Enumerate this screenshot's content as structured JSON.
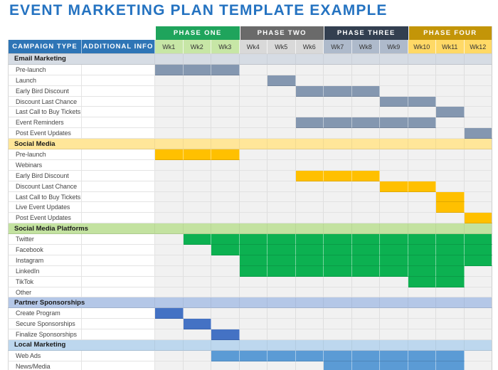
{
  "title": "EVENT MARKETING PLAN TEMPLATE EXAMPLE",
  "colors": {
    "title": "#2573C1",
    "column_header_bg": "#2E75B6",
    "empty_cell_bg": "#F1F1F1"
  },
  "columns": {
    "campaign": "CAMPAIGN TYPE",
    "info": "ADDITIONAL INFO",
    "weeks": [
      "Wk1",
      "Wk2",
      "Wk3",
      "Wk4",
      "Wk5",
      "Wk6",
      "Wk7",
      "Wk8",
      "Wk9",
      "Wk10",
      "Wk11",
      "Wk12"
    ]
  },
  "week_groups": [
    "#C7E6A6",
    "#D9D9D9",
    "#AEBACB",
    "#FFD966"
  ],
  "phases": [
    {
      "label": "PHASE ONE",
      "color": "#1FA45C"
    },
    {
      "label": "PHASE TWO",
      "color": "#6A6A6A"
    },
    {
      "label": "PHASE THREE",
      "color": "#333F50"
    },
    {
      "label": "PHASE FOUR",
      "color": "#C39508"
    }
  ],
  "rows": [
    {
      "kind": "section",
      "label": "Email Marketing",
      "bg": "#D6DCE4"
    },
    {
      "kind": "task",
      "label": "Pre-launch",
      "start": 1,
      "end": 3,
      "color": "#8497B0"
    },
    {
      "kind": "task",
      "label": "Launch",
      "start": 5,
      "end": 5,
      "color": "#8497B0"
    },
    {
      "kind": "task",
      "label": "Early Bird Discount",
      "start": 6,
      "end": 8,
      "color": "#8497B0"
    },
    {
      "kind": "task",
      "label": "Discount Last Chance",
      "start": 9,
      "end": 10,
      "color": "#8497B0"
    },
    {
      "kind": "task",
      "label": "Last Call to Buy Tickets",
      "start": 11,
      "end": 11,
      "color": "#8497B0"
    },
    {
      "kind": "task",
      "label": "Event Reminders",
      "start": 6,
      "end": 10,
      "color": "#8497B0"
    },
    {
      "kind": "task",
      "label": "Post Event Updates",
      "start": 12,
      "end": 12,
      "color": "#8497B0"
    },
    {
      "kind": "section",
      "label": "Social Media",
      "bg": "#FFE699"
    },
    {
      "kind": "task",
      "label": "Pre-launch",
      "start": 1,
      "end": 3,
      "color": "#FFC000"
    },
    {
      "kind": "task",
      "label": "Webinars",
      "start": null,
      "end": null,
      "color": null
    },
    {
      "kind": "task",
      "label": "Early Bird Discount",
      "start": 6,
      "end": 8,
      "color": "#FFC000"
    },
    {
      "kind": "task",
      "label": "Discount Last Chance",
      "start": 9,
      "end": 10,
      "color": "#FFC000"
    },
    {
      "kind": "task",
      "label": "Last Call to Buy Tickets",
      "start": 11,
      "end": 11,
      "color": "#FFC000"
    },
    {
      "kind": "task",
      "label": "Live Event Updates",
      "start": 11,
      "end": 11,
      "color": "#FFC000"
    },
    {
      "kind": "task",
      "label": "Post Event Updates",
      "start": 12,
      "end": 12,
      "color": "#FFC000"
    },
    {
      "kind": "section",
      "label": "Social Media Platforms",
      "bg": "#C3E2A0"
    },
    {
      "kind": "task",
      "label": "Twitter",
      "start": 2,
      "end": 12,
      "color": "#0CB151"
    },
    {
      "kind": "task",
      "label": "Facebook",
      "start": 3,
      "end": 12,
      "color": "#0CB151"
    },
    {
      "kind": "task",
      "label": "Instagram",
      "start": 4,
      "end": 12,
      "color": "#0CB151"
    },
    {
      "kind": "task",
      "label": "LinkedIn",
      "start": 4,
      "end": 11,
      "color": "#0CB151"
    },
    {
      "kind": "task",
      "label": "TikTok",
      "start": 10,
      "end": 11,
      "color": "#0CB151"
    },
    {
      "kind": "task",
      "label": "Other",
      "start": null,
      "end": null,
      "color": null
    },
    {
      "kind": "section",
      "label": "Partner Sponsorships",
      "bg": "#B4C7E7"
    },
    {
      "kind": "task",
      "label": "Create Program",
      "start": 1,
      "end": 1,
      "color": "#4472C4"
    },
    {
      "kind": "task",
      "label": "Secure Sponsorships",
      "start": 2,
      "end": 2,
      "color": "#4472C4"
    },
    {
      "kind": "task",
      "label": "Finalize Sponsorships",
      "start": 3,
      "end": 3,
      "color": "#4472C4"
    },
    {
      "kind": "section",
      "label": "Local Marketing",
      "bg": "#BDD7EE"
    },
    {
      "kind": "task",
      "label": "Web Ads",
      "start": 3,
      "end": 11,
      "color": "#5B9BD5"
    },
    {
      "kind": "task",
      "label": "News/Media",
      "start": 7,
      "end": 11,
      "color": "#5B9BD5"
    }
  ]
}
